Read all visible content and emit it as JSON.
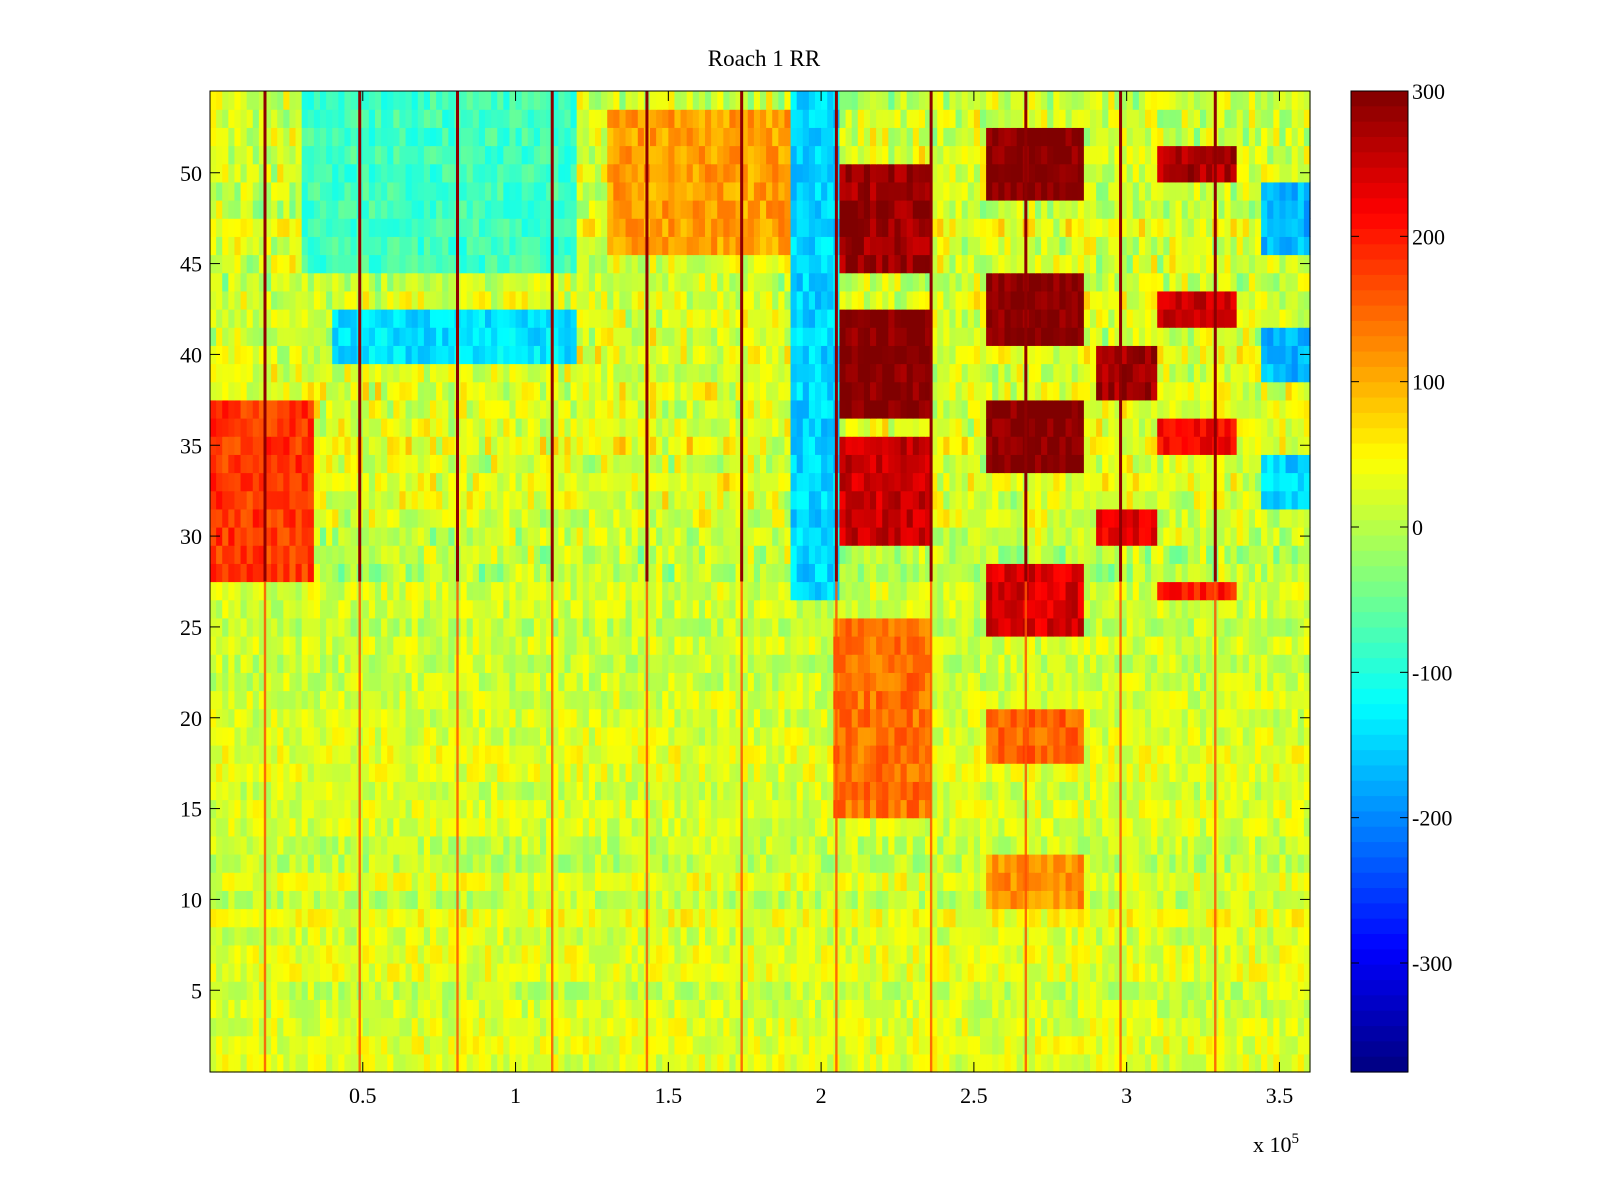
{
  "chart_data": {
    "type": "heatmap",
    "title": "Roach 1 RR",
    "xlabel": "",
    "ylabel": "",
    "x_multiplier_label": "x 10",
    "x_multiplier_exponent": "5",
    "xlim": [
      0,
      3.6
    ],
    "ylim": [
      0.5,
      54.5
    ],
    "x_ticks": [
      0.5,
      1,
      1.5,
      2,
      2.5,
      3,
      3.5
    ],
    "x_tick_labels": [
      "0.5",
      "1",
      "1.5",
      "2",
      "2.5",
      "3",
      "3.5"
    ],
    "y_ticks": [
      5,
      10,
      15,
      20,
      25,
      30,
      35,
      40,
      45,
      50
    ],
    "y_tick_labels": [
      "5",
      "10",
      "15",
      "20",
      "25",
      "30",
      "35",
      "40",
      "45",
      "50"
    ],
    "colorbar": {
      "colormap": "jet",
      "range": [
        -375,
        300
      ],
      "ticks": [
        300,
        200,
        100,
        0,
        -100,
        -200,
        -300
      ],
      "tick_labels": [
        "300",
        "200",
        "100",
        "0",
        "-100",
        "-200",
        "-300"
      ]
    },
    "rows": 54,
    "base_value": 20,
    "vertical_lines": {
      "x": [
        0.18,
        0.49,
        0.81,
        1.12,
        1.43,
        1.74,
        2.05,
        2.36,
        2.67,
        2.98,
        3.29
      ],
      "value": 290
    },
    "blobs": [
      {
        "x": [
          2.05,
          2.36
        ],
        "y": [
          44.5,
          50.5
        ],
        "value": 280
      },
      {
        "x": [
          2.05,
          2.36
        ],
        "y": [
          36.5,
          42.5
        ],
        "value": 300
      },
      {
        "x": [
          2.05,
          2.36
        ],
        "y": [
          29.5,
          35.5
        ],
        "value": 250
      },
      {
        "x": [
          2.05,
          2.36
        ],
        "y": [
          14.5,
          25.5
        ],
        "value": 140
      },
      {
        "x": [
          2.55,
          2.85
        ],
        "y": [
          48.5,
          52.5
        ],
        "value": 300
      },
      {
        "x": [
          2.55,
          2.85
        ],
        "y": [
          40.5,
          44.5
        ],
        "value": 300
      },
      {
        "x": [
          2.55,
          2.85
        ],
        "y": [
          33.5,
          37.5
        ],
        "value": 300
      },
      {
        "x": [
          2.55,
          2.85
        ],
        "y": [
          24.5,
          28.5
        ],
        "value": 240
      },
      {
        "x": [
          2.55,
          2.85
        ],
        "y": [
          17.5,
          20.5
        ],
        "value": 150
      },
      {
        "x": [
          2.55,
          2.85
        ],
        "y": [
          9.5,
          12.5
        ],
        "value": 120
      },
      {
        "x": [
          2.9,
          3.1
        ],
        "y": [
          37.5,
          40.5
        ],
        "value": 280
      },
      {
        "x": [
          2.9,
          3.1
        ],
        "y": [
          29.5,
          31.5
        ],
        "value": 230
      },
      {
        "x": [
          3.1,
          3.35
        ],
        "y": [
          49.5,
          51.5
        ],
        "value": 270
      },
      {
        "x": [
          3.1,
          3.35
        ],
        "y": [
          41.5,
          43.5
        ],
        "value": 250
      },
      {
        "x": [
          3.1,
          3.35
        ],
        "y": [
          34.5,
          36.5
        ],
        "value": 220
      },
      {
        "x": [
          3.1,
          3.35
        ],
        "y": [
          26.5,
          27.5
        ],
        "value": 200
      },
      {
        "x": [
          0.0,
          0.35
        ],
        "y": [
          27.5,
          37.5
        ],
        "value": 180
      },
      {
        "x": [
          1.3,
          1.95
        ],
        "y": [
          45.5,
          53.5
        ],
        "value": 110
      },
      {
        "x": [
          1.9,
          2.05
        ],
        "y": [
          26.5,
          54.5
        ],
        "value": -150
      },
      {
        "x": [
          0.4,
          1.2
        ],
        "y": [
          39.5,
          42.5
        ],
        "value": -140
      },
      {
        "x": [
          0.3,
          1.2
        ],
        "y": [
          44.5,
          54.5
        ],
        "value": -80
      },
      {
        "x": [
          3.45,
          3.6
        ],
        "y": [
          45.5,
          49.5
        ],
        "value": -170
      },
      {
        "x": [
          3.45,
          3.6
        ],
        "y": [
          38.5,
          41.5
        ],
        "value": -170
      },
      {
        "x": [
          3.45,
          3.6
        ],
        "y": [
          31.5,
          34.5
        ],
        "value": -150
      }
    ]
  }
}
